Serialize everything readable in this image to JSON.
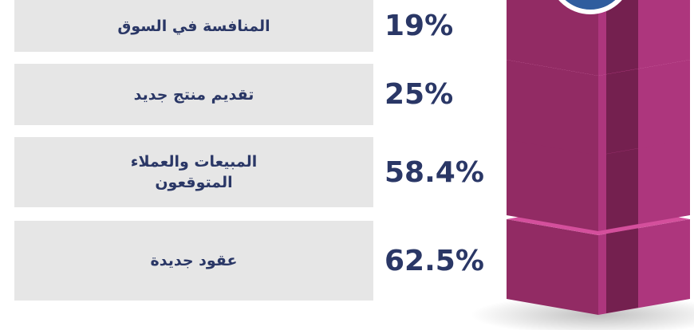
{
  "items": [
    {
      "label": "المنافسة في السوق",
      "value": "19%"
    },
    {
      "label": "تقديم منتج جديد",
      "value": "25%"
    },
    {
      "label": "المبيعات والعملاء المتوقعون",
      "value": "58.4%"
    },
    {
      "label": "عقود جديدة",
      "value": "62.5%"
    }
  ]
}
